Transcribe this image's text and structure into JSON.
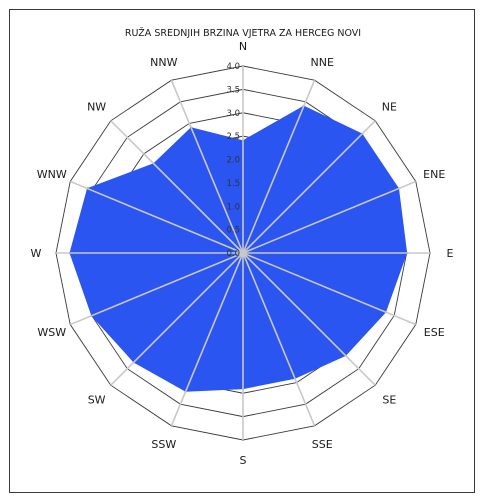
{
  "chart_data": {
    "type": "radar",
    "title": "RUŽA SREDNJIH BRZINA VJETRA ZA HERCEG NOVI",
    "directions": [
      "N",
      "NNE",
      "NE",
      "ENE",
      "E",
      "ESE",
      "SE",
      "SSE",
      "S",
      "SSW",
      "SW",
      "WSW",
      "W",
      "WNW",
      "NW",
      "NNW"
    ],
    "values": [
      2.4,
      3.4,
      3.6,
      3.6,
      3.5,
      3.3,
      3.1,
      2.9,
      2.9,
      3.2,
      3.3,
      3.5,
      3.7,
      3.6,
      2.7,
      2.9
    ],
    "rlim": [
      0,
      4.0
    ],
    "radial_ticks": [
      "0.0",
      "0.5",
      "1.0",
      "1.5",
      "2.0",
      "2.5",
      "3.0",
      "3.5",
      "4.0"
    ],
    "fill_color": "#2b55f0",
    "grid_color": "#c8c8c8",
    "grid": true,
    "legend": "none"
  }
}
